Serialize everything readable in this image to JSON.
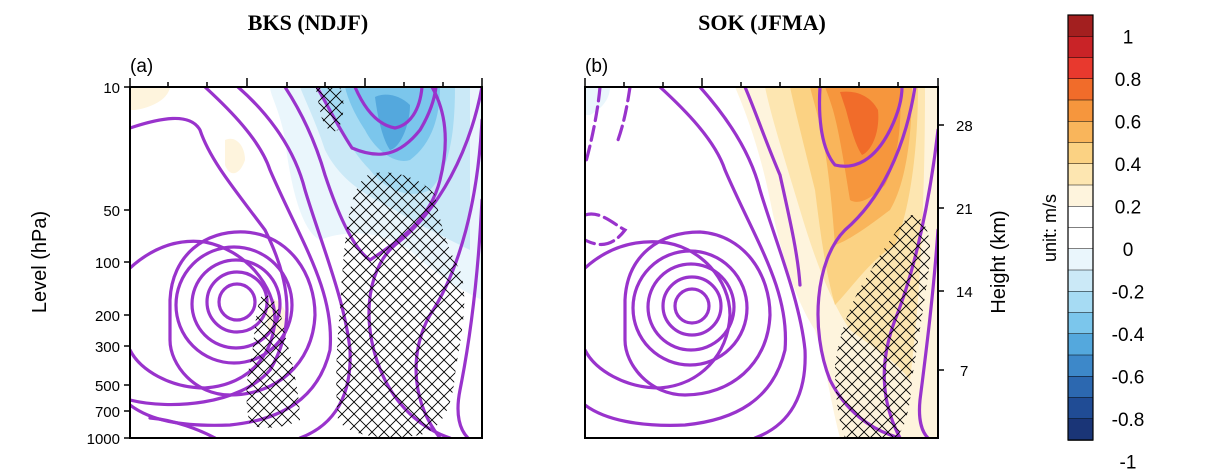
{
  "chart_data": [
    {
      "type": "contour",
      "panel_label": "(a)",
      "title": "BKS (NDJF)",
      "ylabel": "Level (hPa)",
      "yscale": "log",
      "ylim": [
        1000,
        10
      ],
      "yticks": [
        "10",
        "50",
        "100",
        "200",
        "300",
        "500",
        "700",
        "1000"
      ],
      "shading": "negative anomaly in upper levels on the right half, minimum about -0.6 near 10-20 hPa",
      "hatching": "significant regions: upper-middle 10-20 hPa, right-center 30-1000 hPa, lower-left 200-1000 hPa"
    },
    {
      "type": "contour",
      "panel_label": "(b)",
      "title": "SOK (JFMA)",
      "y2label": "Height (km)",
      "y2ticks": [
        "7",
        "14",
        "21",
        "28"
      ],
      "shading": "positive anomaly in upper levels on the right half, maximum about 0.6 near 10-30 hPa",
      "hatching": "significant region on lower right, 80-1000 hPa"
    }
  ],
  "colorbar": {
    "unit_label": "unit: m/s",
    "tick_labels": [
      "1",
      "0.8",
      "0.6",
      "0.4",
      "0.2",
      "0",
      "-0.2",
      "-0.4",
      "-0.6",
      "-0.8",
      "-1"
    ],
    "colors": [
      "#a31f1f",
      "#c92327",
      "#e8392e",
      "#f16c2a",
      "#f6963d",
      "#f9b55b",
      "#fbd283",
      "#fde6b1",
      "#fef4dd",
      "#ffffff",
      "#ffffff",
      "#eaf6fc",
      "#cbe9f7",
      "#a6dbf3",
      "#7bc6ec",
      "#54a8dd",
      "#3d88c9",
      "#2c68b0",
      "#204c95",
      "#1a3577"
    ]
  },
  "colors": {
    "contour": "#9933cc",
    "hatch": "#000000"
  }
}
